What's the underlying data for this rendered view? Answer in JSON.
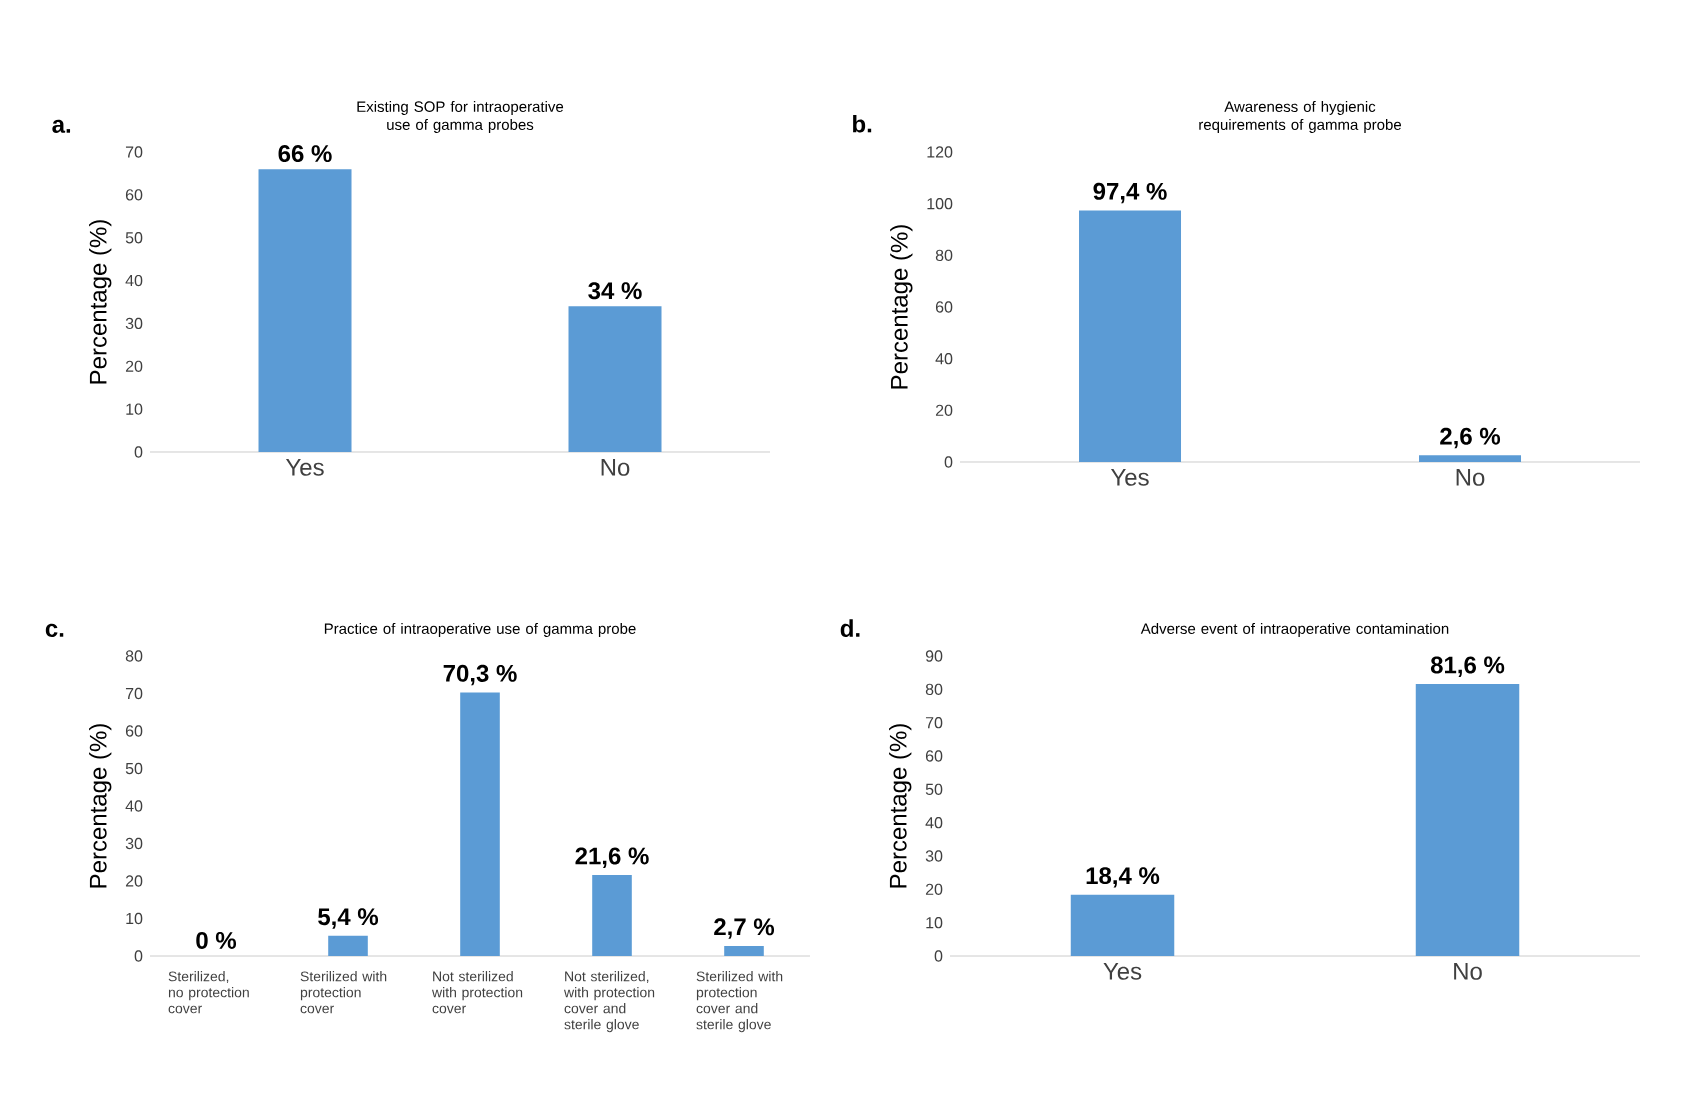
{
  "chart_data": [
    {
      "type": "bar",
      "title": "Existing SOP for intraoperative use of gamma probes",
      "ylabel": "Percentage (%)",
      "categories": [
        "Yes",
        "No"
      ],
      "values": [
        66,
        34
      ],
      "value_labels": [
        "66 %",
        "34 %"
      ],
      "color": "#5b9bd5",
      "ylim": [
        0,
        70
      ],
      "yticks": [
        0,
        10,
        20,
        30,
        40,
        50,
        60,
        70
      ],
      "annotations": [
        "a."
      ]
    },
    {
      "type": "bar",
      "title": "Awareness of hygienic requirements of gamma probe",
      "ylabel": "Percentage (%)",
      "categories": [
        "Yes",
        "No"
      ],
      "values": [
        97.4,
        2.6
      ],
      "value_labels": [
        "97,4 %",
        "2,6 %"
      ],
      "color": "#5b9bd5",
      "ylim": [
        0,
        120
      ],
      "yticks": [
        0,
        20,
        40,
        60,
        80,
        100,
        120
      ],
      "annotations": [
        "b."
      ]
    },
    {
      "type": "bar",
      "title": "Practice of intraoperative use of gamma probe",
      "ylabel": "Percentage (%)",
      "categories": [
        "Sterilized, no protection cover",
        "Sterilized with protection cover",
        "Not sterilized with protection cover",
        "Not sterilized, with protection cover and sterile glove",
        "Sterilized with protection cover and sterile glove"
      ],
      "values": [
        0,
        5.4,
        70.3,
        21.6,
        2.7
      ],
      "value_labels": [
        "0 %",
        "5,4 %",
        "70,3 %",
        "21,6 %",
        "2,7 %"
      ],
      "color": "#5b9bd5",
      "ylim": [
        0,
        80
      ],
      "yticks": [
        0,
        10,
        20,
        30,
        40,
        50,
        60,
        70,
        80
      ],
      "annotations": [
        "c."
      ]
    },
    {
      "type": "bar",
      "title": "Adverse event  of intraoperative contamination",
      "ylabel": "Percentage (%)",
      "categories": [
        "Yes",
        "No"
      ],
      "values": [
        18.4,
        81.6
      ],
      "value_labels": [
        "18,4 %",
        "81,6 %"
      ],
      "color": "#5b9bd5",
      "ylim": [
        0,
        90
      ],
      "yticks": [
        0,
        10,
        20,
        30,
        40,
        50,
        60,
        70,
        80,
        90
      ],
      "annotations": [
        "d."
      ]
    }
  ]
}
